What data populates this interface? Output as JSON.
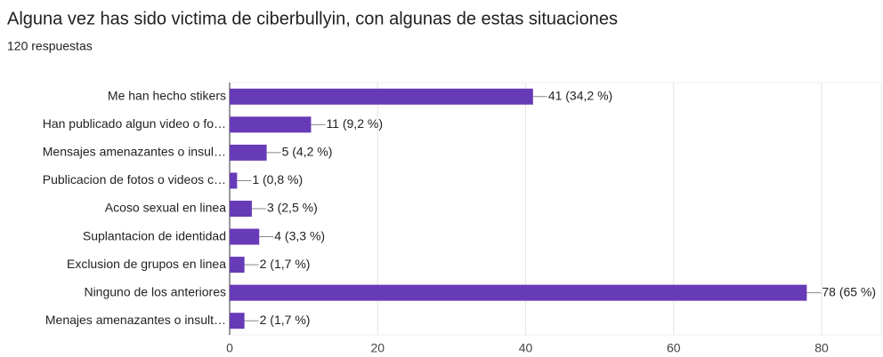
{
  "chart_data": {
    "type": "bar",
    "orientation": "horizontal",
    "title": "Alguna vez has sido victima de ciberbullyin, con algunas de estas situaciones",
    "subtitle": "120 respuestas",
    "categories": [
      "Me han hecho stikers",
      "Han publicado algun video o fo…",
      "Mensajes amenazantes o insul…",
      "Publicacion de fotos o videos c…",
      "Acoso sexual en linea",
      "Suplantacion de identidad",
      "Exclusion de grupos en linea",
      "Ninguno de los anteriores",
      "Menajes amenazantes o insult…"
    ],
    "values": [
      41,
      11,
      5,
      1,
      3,
      4,
      2,
      78,
      2
    ],
    "value_labels": [
      "41 (34,2 %)",
      "11 (9,2 %)",
      "5 (4,2 %)",
      "1 (0,8 %)",
      "3 (2,5 %)",
      "4 (3,3 %)",
      "2 (1,7 %)",
      "78 (65 %)",
      "2 (1,7 %)"
    ],
    "color": "#673ab7",
    "xlim": [
      0,
      80
    ],
    "xticks": [
      0,
      20,
      40,
      60,
      80
    ],
    "grid": true
  }
}
